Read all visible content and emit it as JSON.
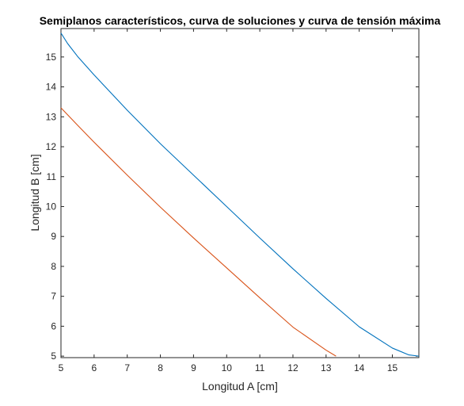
{
  "chart_data": {
    "type": "line",
    "title": "Semiplanos característicos, curva de soluciones y curva de tensión máxima",
    "xlabel": "Longitud A [cm]",
    "ylabel": "Longitud B [cm]",
    "xlim": [
      5,
      15.8
    ],
    "ylim": [
      4.95,
      15.95
    ],
    "xticks": [
      5,
      6,
      7,
      8,
      9,
      10,
      11,
      12,
      13,
      14,
      15
    ],
    "yticks": [
      5,
      6,
      7,
      8,
      9,
      10,
      11,
      12,
      13,
      14,
      15
    ],
    "grid": false,
    "series": [
      {
        "color": "#0072BD",
        "x": [
          5.0,
          5.2,
          5.5,
          6.0,
          7.0,
          8.0,
          9.0,
          10.0,
          11.0,
          12.0,
          13.0,
          14.0,
          15.0,
          15.5,
          15.8
        ],
        "y": [
          15.8,
          15.45,
          15.02,
          14.4,
          13.22,
          12.1,
          11.05,
          10.0,
          8.95,
          7.92,
          6.93,
          5.98,
          5.27,
          5.04,
          5.0
        ]
      },
      {
        "color": "#D95319",
        "x": [
          5.0,
          5.5,
          6.0,
          7.0,
          8.0,
          9.0,
          10.0,
          11.0,
          12.0,
          13.0,
          13.3
        ],
        "y": [
          13.3,
          12.72,
          12.15,
          11.05,
          9.98,
          8.95,
          7.95,
          6.95,
          5.97,
          5.2,
          5.0
        ]
      }
    ]
  }
}
